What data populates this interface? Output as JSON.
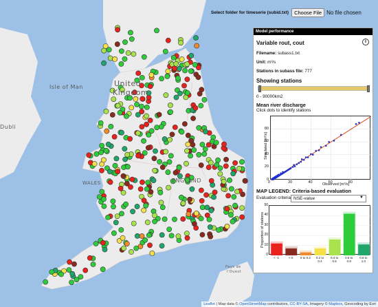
{
  "folder_bar": {
    "label": "Select folder for timeserie (subid.txt)",
    "choose_button": "Choose File",
    "file_status": "No file chosen"
  },
  "map": {
    "labels": {
      "isle_of_man": "Isle of Man",
      "united_kingdom_1": "United",
      "united_kingdom_2": "Kingdom",
      "wales": "WALES",
      "england": "ENGLAND",
      "dublin": "Dubli",
      "pays": "Pays de",
      "ouest": "l'Ouest"
    }
  },
  "panel": {
    "title": "Model performance",
    "variable": "Variable rout, cout",
    "filename_label": "Filename:",
    "filename": "subass1.txt",
    "unit_label": "Unit:",
    "unit": "m³/s",
    "stations_label": "Stations in subass file:",
    "stations_count": "777",
    "showing_title": "Showing stations",
    "slider_range": "0 - 90000km2",
    "slider_min_fraction": 0.0,
    "slider_max_fraction": 1.0,
    "mean_title": "Mean river discharge",
    "click_hint": "Click dots to identify stations",
    "legend_title": "MAP LEGEND: Criteria-based evaluation",
    "criteria_label": "Evaluation criteria:",
    "criteria_value": "NSE-value"
  },
  "chart_data": [
    {
      "type": "scatter",
      "xlabel": "Observed [m³/s]",
      "ylabel": "Simulated [m³/s]",
      "xlim": [
        0,
        100
      ],
      "ylim": [
        0,
        100
      ],
      "xticks": [
        "0",
        "20",
        "40",
        "60",
        "80"
      ],
      "yticks": [
        "0",
        "20",
        "40",
        "60",
        "80"
      ],
      "fit_line": [
        [
          0,
          0
        ],
        [
          100,
          100
        ]
      ],
      "fit_color": "#d9531e",
      "point_color": "#1f2fd1",
      "points": [
        [
          1,
          2
        ],
        [
          2,
          1
        ],
        [
          2,
          3
        ],
        [
          3,
          2
        ],
        [
          3,
          4
        ],
        [
          4,
          3
        ],
        [
          4,
          5
        ],
        [
          5,
          4
        ],
        [
          5,
          6
        ],
        [
          6,
          5
        ],
        [
          6,
          7
        ],
        [
          7,
          6
        ],
        [
          7,
          8
        ],
        [
          8,
          7
        ],
        [
          8,
          9
        ],
        [
          9,
          8
        ],
        [
          10,
          9
        ],
        [
          10,
          11
        ],
        [
          11,
          10
        ],
        [
          12,
          11
        ],
        [
          12,
          13
        ],
        [
          13,
          12
        ],
        [
          14,
          13
        ],
        [
          15,
          14
        ],
        [
          16,
          15
        ],
        [
          17,
          16
        ],
        [
          18,
          17
        ],
        [
          19,
          18
        ],
        [
          20,
          19
        ],
        [
          22,
          21
        ],
        [
          23,
          24
        ],
        [
          24,
          22
        ],
        [
          26,
          25
        ],
        [
          28,
          27
        ],
        [
          30,
          29
        ],
        [
          31,
          33
        ],
        [
          33,
          32
        ],
        [
          35,
          36
        ],
        [
          37,
          36
        ],
        [
          40,
          41
        ],
        [
          42,
          40
        ],
        [
          45,
          46
        ],
        [
          48,
          47
        ],
        [
          50,
          52
        ],
        [
          55,
          54
        ],
        [
          58,
          60
        ],
        [
          63,
          62
        ],
        [
          70,
          71
        ],
        [
          85,
          88
        ],
        [
          88,
          90
        ]
      ]
    },
    {
      "type": "bar",
      "ylabel": "Proportion of stations",
      "ylim": [
        0,
        50
      ],
      "yticks": [
        "0",
        "10",
        "20",
        "30",
        "40",
        "50"
      ],
      "categories": [
        "< -1",
        "< 0",
        "0 to 0.2",
        "0.2 to 0.4",
        "0.4 to 0.6",
        "0.6 to 0.8",
        "0.8 to 1.0"
      ],
      "values": [
        12,
        7,
        3,
        7,
        16,
        42,
        11
      ],
      "colors": [
        "#e8231d",
        "#8a2a1e",
        "#f08a2e",
        "#f5e04a",
        "#a8e24d",
        "#2ecc3a",
        "#20a56a"
      ]
    }
  ],
  "attribution": {
    "leaflet": "Leaflet",
    "text1": " | Map data © ",
    "osm": "OpenStreetMap",
    "text2": " contributors, ",
    "ccbysa": "CC-BY-SA",
    "text3": ", Imagery © ",
    "mapbox": "Mapbox",
    "text4": ", Geocoding by Esri"
  }
}
